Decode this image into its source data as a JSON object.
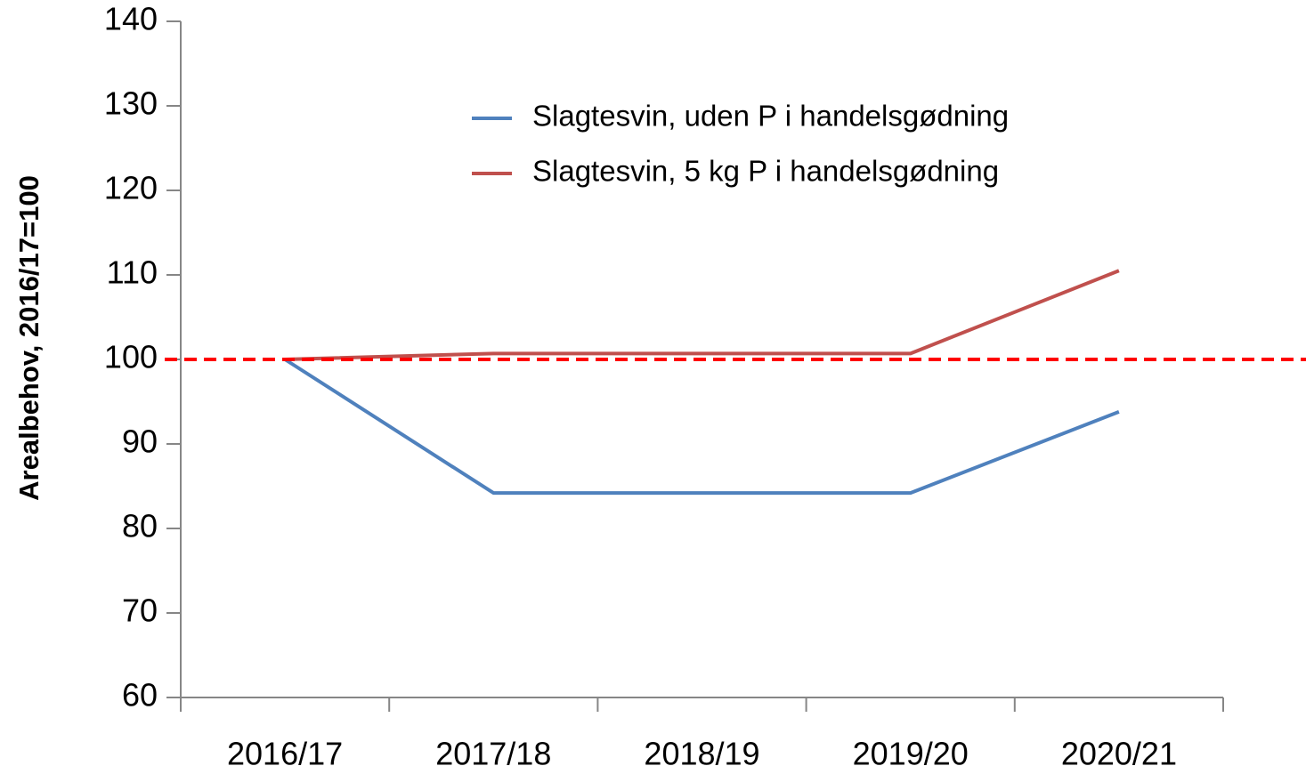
{
  "chart_data": {
    "type": "line",
    "y_label": "Arealbehov, 2016/17=100",
    "categories": [
      "2016/17",
      "2017/18",
      "2018/19",
      "2019/20",
      "2020/21"
    ],
    "series": [
      {
        "name": "Slagtesvin, uden P i handelsgødning",
        "color": "#4f81bd",
        "values": [
          100,
          84.2,
          84.2,
          84.2,
          93.8
        ]
      },
      {
        "name": "Slagtesvin, 5 kg P i handelsgødning",
        "color": "#c0504d",
        "values": [
          100,
          100.7,
          100.7,
          100.7,
          110.5
        ]
      }
    ],
    "reference_line": {
      "value": 100,
      "color": "#ff0000"
    },
    "ylim": [
      60,
      140
    ],
    "yticks": [
      60,
      70,
      80,
      90,
      100,
      110,
      120,
      130,
      140
    ]
  }
}
